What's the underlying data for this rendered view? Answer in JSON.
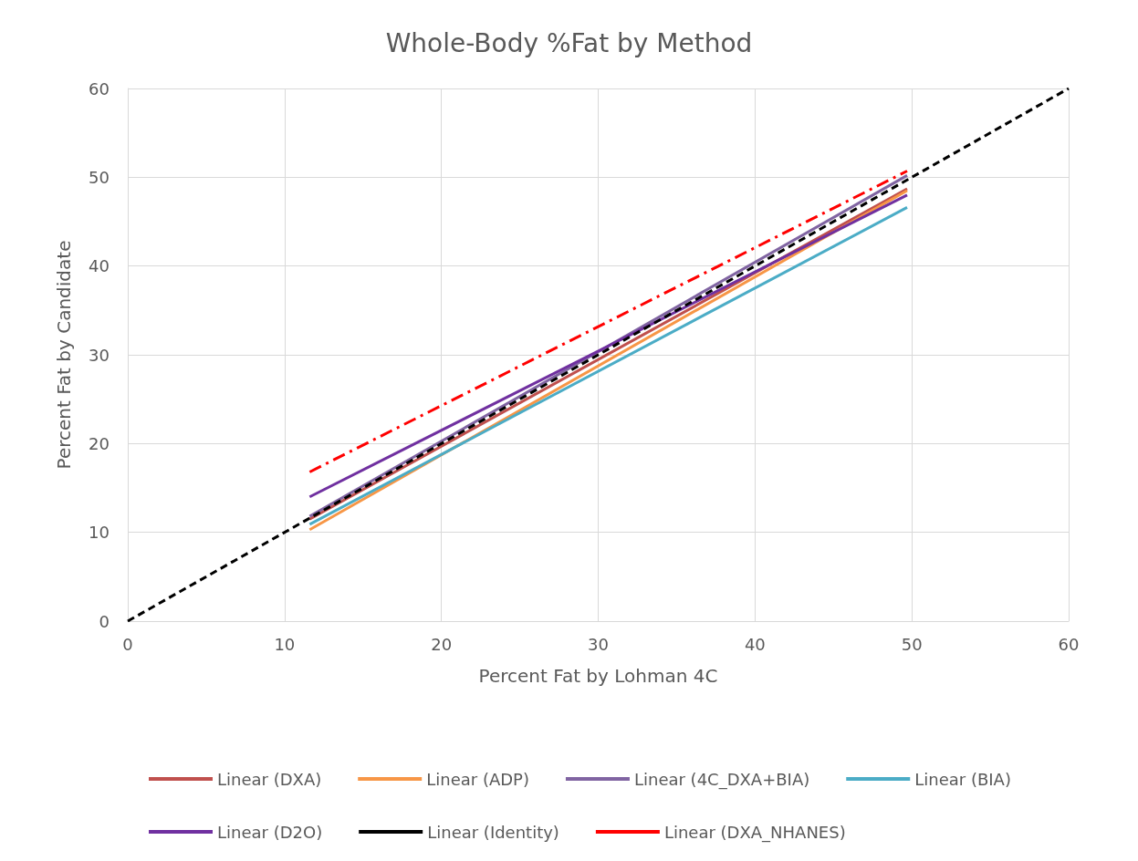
{
  "chart_data": {
    "type": "line",
    "title": "Whole-Body %Fat by Method",
    "xlabel": "Percent Fat by Lohman 4C",
    "ylabel": "Percent Fat by Candidate",
    "xlim": [
      0,
      60
    ],
    "xticks": [
      0,
      10,
      20,
      30,
      40,
      50,
      60
    ],
    "ylim": [
      0,
      60
    ],
    "yticks": [
      0,
      10,
      20,
      30,
      40,
      50,
      60
    ],
    "grid": true,
    "legend": "bottom",
    "marker": "none",
    "series": [
      {
        "name": "Linear (DXA)",
        "color": "#c0504d",
        "x": [
          11.6,
          49.7
        ],
        "values": [
          11.5,
          48.7
        ],
        "line_style": "solid"
      },
      {
        "name": "Linear (ADP)",
        "color": "#f79646",
        "x": [
          11.6,
          49.7
        ],
        "values": [
          10.3,
          48.5
        ],
        "line_style": "solid"
      },
      {
        "name": "Linear (4C_DXA+BIA)",
        "color": "#8064a2",
        "x": [
          11.6,
          49.7
        ],
        "values": [
          11.8,
          50.2
        ],
        "line_style": "solid"
      },
      {
        "name": "Linear (BIA)",
        "color": "#4bacc6",
        "x": [
          11.6,
          49.7
        ],
        "values": [
          10.9,
          46.6
        ],
        "line_style": "solid"
      },
      {
        "name": "Linear (D2O)",
        "color": "#7030a0",
        "x": [
          11.6,
          49.7
        ],
        "values": [
          14.0,
          48.0
        ],
        "line_style": "solid"
      },
      {
        "name": "Linear (Identity)",
        "color": "#000000",
        "x": [
          0,
          60
        ],
        "values": [
          0,
          60
        ],
        "line_style": "dashed"
      },
      {
        "name": "Linear (DXA_NHANES)",
        "color": "#ff0000",
        "x": [
          11.6,
          49.7
        ],
        "values": [
          16.8,
          50.7
        ],
        "line_style": "dashdot"
      }
    ]
  }
}
